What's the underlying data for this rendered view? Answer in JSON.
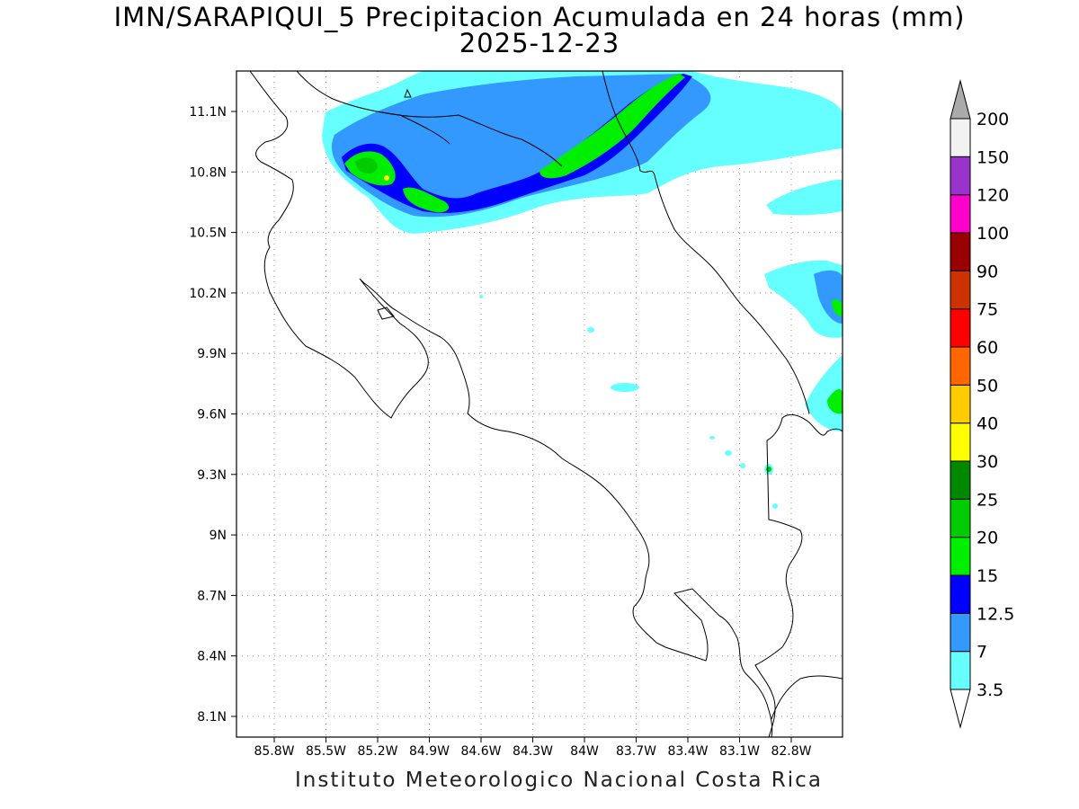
{
  "title": {
    "line1": "IMN/SARAPIQUI_5 Precipitacion Acumulada en 24 horas (mm)",
    "line2": "2025-12-23"
  },
  "footer": "Instituto Meteorologico Nacional Costa Rica",
  "map": {
    "lat_ticks": [
      "11.1N",
      "10.8N",
      "10.5N",
      "10.2N",
      "9.9N",
      "9.6N",
      "9.3N",
      "9N",
      "8.7N",
      "8.4N",
      "8.1N"
    ],
    "lon_ticks": [
      "85.8W",
      "85.5W",
      "85.2W",
      "84.9W",
      "84.6W",
      "84.3W",
      "84W",
      "83.7W",
      "83.4W",
      "83.1W",
      "82.8W"
    ]
  },
  "colorbar": {
    "levels": [
      {
        "label": "3.5",
        "color": "#66ffff"
      },
      {
        "label": "7",
        "color": "#3399ff"
      },
      {
        "label": "12.5",
        "color": "#0000ff"
      },
      {
        "label": "15",
        "color": "#00ee00"
      },
      {
        "label": "20",
        "color": "#00cc00"
      },
      {
        "label": "25",
        "color": "#008800"
      },
      {
        "label": "30",
        "color": "#ffff00"
      },
      {
        "label": "40",
        "color": "#ffcc00"
      },
      {
        "label": "50",
        "color": "#ff6600"
      },
      {
        "label": "60",
        "color": "#ff0000"
      },
      {
        "label": "75",
        "color": "#cc3300"
      },
      {
        "label": "90",
        "color": "#990000"
      },
      {
        "label": "100",
        "color": "#ff00cc"
      },
      {
        "label": "120",
        "color": "#9933cc"
      },
      {
        "label": "150",
        "color": "#f2f2f2"
      },
      {
        "label": "200",
        "color": "#aaaaaa"
      }
    ],
    "boxes": [
      "#66ffff",
      "#3399ff",
      "#0000ff",
      "#00ee00",
      "#00cc00",
      "#008800",
      "#ffff00",
      "#ffcc00",
      "#ff6600",
      "#ff0000",
      "#cc3300",
      "#990000",
      "#ff00cc",
      "#9933cc",
      "#f2f2f2"
    ]
  }
}
